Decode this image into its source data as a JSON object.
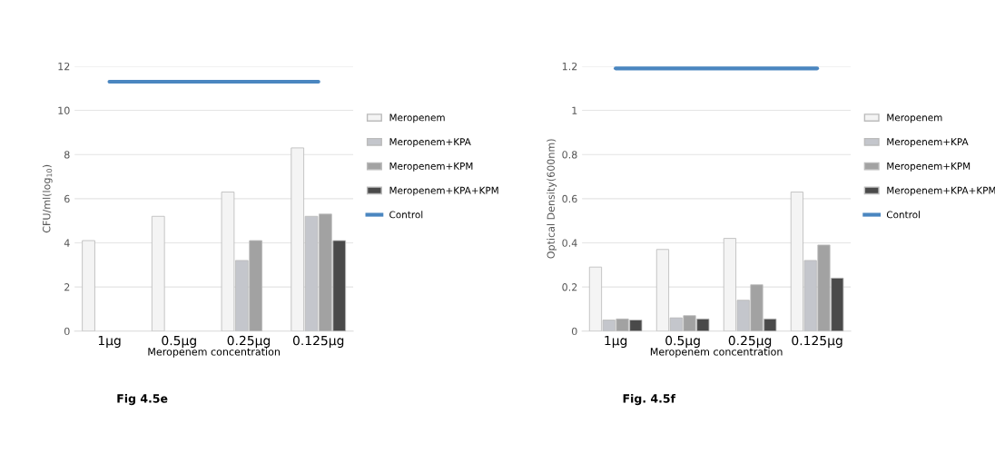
{
  "chart_data": [
    {
      "type": "bar",
      "ylabel": "CFU/ml(log$_{10}$)",
      "xlabel": "Meropenem concentration",
      "categories": [
        "1µg",
        "0.5µg",
        "0.25µg",
        "0.125µg"
      ],
      "ylim": [
        0,
        12
      ],
      "yticks": [
        0,
        2,
        4,
        6,
        8,
        10,
        12
      ],
      "grid": "y",
      "legend": "right",
      "annotations": [
        "Fig 4.5e"
      ],
      "series": [
        {
          "name": "Meropenem",
          "color": "#f4f4f4",
          "values": [
            4.1,
            5.2,
            6.3,
            8.3
          ]
        },
        {
          "name": "Meropenem+KPA",
          "color": "#c4c6cc",
          "values": [
            null,
            null,
            3.2,
            5.2
          ]
        },
        {
          "name": "Meropenem+KPM",
          "color": "#a2a2a2",
          "values": [
            null,
            null,
            4.1,
            5.3
          ]
        },
        {
          "name": "Meropenem+KPA+KPM",
          "color": "#4a4a4a",
          "values": [
            null,
            null,
            null,
            4.1
          ]
        },
        {
          "name": "Control",
          "type": "line",
          "color": "#4a86c0",
          "values": [
            11.3,
            11.3,
            11.3,
            11.3
          ]
        }
      ]
    },
    {
      "type": "bar",
      "ylabel": "Optical Density(600nm)",
      "xlabel": "Meropenem concentration",
      "categories": [
        "1µg",
        "0.5µg",
        "0.25µg",
        "0.125µg"
      ],
      "ylim": [
        0,
        1.2
      ],
      "yticks": [
        0,
        0.2,
        0.4,
        0.6,
        0.8,
        1,
        1.2
      ],
      "grid": "y",
      "legend": "right",
      "annotations": [
        "Fig. 4.5f"
      ],
      "series": [
        {
          "name": "Meropenem",
          "color": "#f4f4f4",
          "values": [
            0.29,
            0.37,
            0.42,
            0.63
          ]
        },
        {
          "name": "Meropenem+KPA",
          "color": "#c4c6cc",
          "values": [
            0.05,
            0.06,
            0.14,
            0.32
          ]
        },
        {
          "name": "Meropenem+KPM",
          "color": "#a2a2a2",
          "values": [
            0.055,
            0.07,
            0.21,
            0.39
          ]
        },
        {
          "name": "Meropenem+KPA+KPM",
          "color": "#4a4a4a",
          "values": [
            0.05,
            0.055,
            0.055,
            0.24
          ]
        },
        {
          "name": "Control",
          "type": "line",
          "color": "#4a86c0",
          "values": [
            1.19,
            1.19,
            1.19,
            1.19
          ]
        }
      ]
    }
  ]
}
